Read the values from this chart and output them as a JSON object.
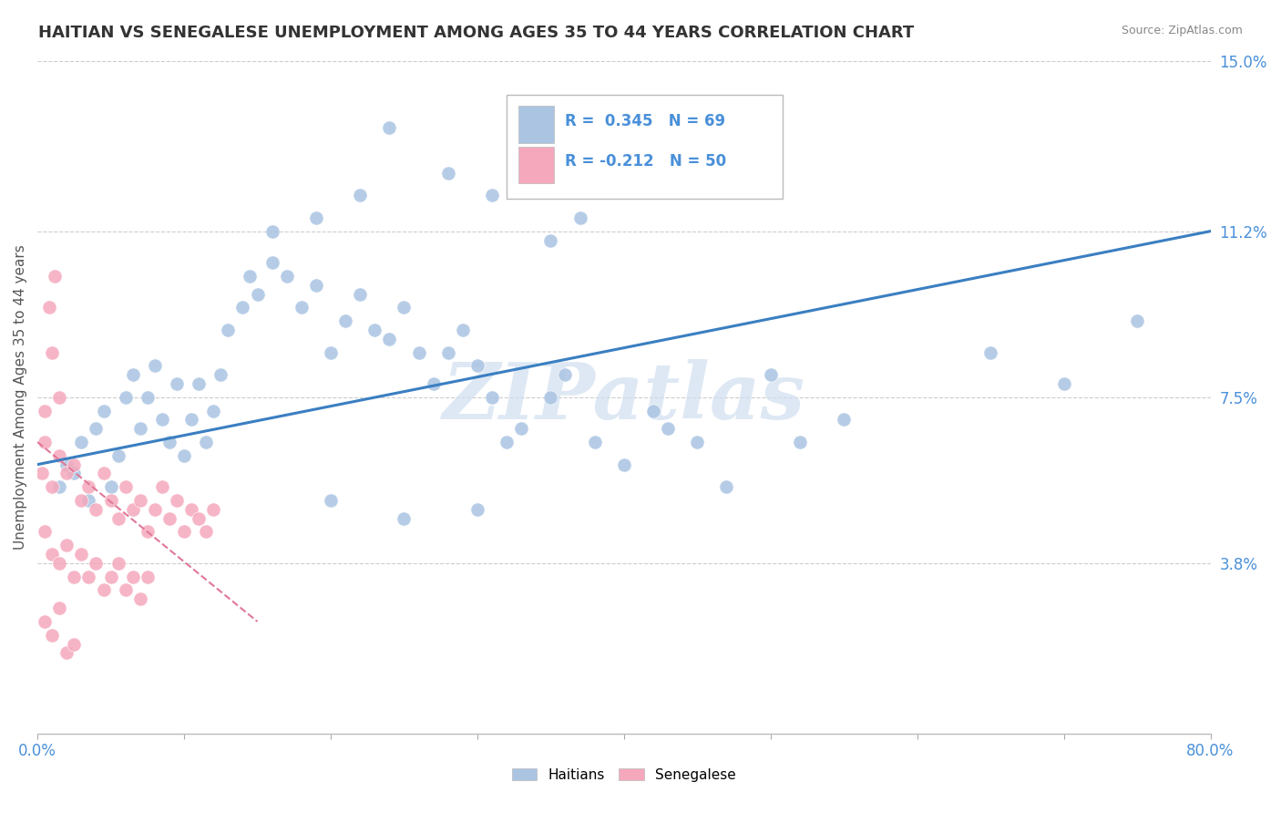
{
  "title": "HAITIAN VS SENEGALESE UNEMPLOYMENT AMONG AGES 35 TO 44 YEARS CORRELATION CHART",
  "source": "Source: ZipAtlas.com",
  "xlim": [
    0.0,
    80.0
  ],
  "ylim": [
    0.0,
    15.0
  ],
  "ytick_vals": [
    3.8,
    7.5,
    11.2,
    15.0
  ],
  "xtick_show": [
    0.0,
    80.0
  ],
  "xtick_minor": [
    10.0,
    20.0,
    30.0,
    40.0,
    50.0,
    60.0,
    70.0
  ],
  "haitian_color": "#aac4e2",
  "senegalese_color": "#f5a8bc",
  "haitian_line_color": "#3a7fc1",
  "senegalese_line_color": "#e07898",
  "watermark": "ZIPatlas",
  "watermark_color": "#d0dff0",
  "axis_label_color": "#4a90d9",
  "legend_label1": "Haitians",
  "legend_label2": "Senegalese",
  "ylabel": "Unemployment Among Ages 35 to 44 years",
  "haitian_R": 0.345,
  "haitian_N": 69,
  "senegalese_R": -0.212,
  "senegalese_N": 50,
  "haitian_line_x0": 0.0,
  "haitian_line_y0": 6.0,
  "haitian_line_x1": 80.0,
  "haitian_line_y1": 11.2,
  "senegalese_line_x0": 0.0,
  "senegalese_line_y0": 6.5,
  "senegalese_line_x1": 15.0,
  "senegalese_line_y1": 2.5,
  "haitian_points": [
    [
      1.5,
      5.5
    ],
    [
      2.0,
      6.0
    ],
    [
      2.5,
      5.8
    ],
    [
      3.0,
      6.5
    ],
    [
      3.5,
      5.2
    ],
    [
      4.0,
      6.8
    ],
    [
      4.5,
      7.2
    ],
    [
      5.0,
      5.5
    ],
    [
      5.5,
      6.2
    ],
    [
      6.0,
      7.5
    ],
    [
      6.5,
      8.0
    ],
    [
      7.0,
      6.8
    ],
    [
      7.5,
      7.5
    ],
    [
      8.0,
      8.2
    ],
    [
      8.5,
      7.0
    ],
    [
      9.0,
      6.5
    ],
    [
      9.5,
      7.8
    ],
    [
      10.0,
      6.2
    ],
    [
      10.5,
      7.0
    ],
    [
      11.0,
      7.8
    ],
    [
      11.5,
      6.5
    ],
    [
      12.0,
      7.2
    ],
    [
      12.5,
      8.0
    ],
    [
      13.0,
      9.0
    ],
    [
      14.0,
      9.5
    ],
    [
      14.5,
      10.2
    ],
    [
      15.0,
      9.8
    ],
    [
      16.0,
      10.5
    ],
    [
      17.0,
      10.2
    ],
    [
      18.0,
      9.5
    ],
    [
      19.0,
      10.0
    ],
    [
      20.0,
      8.5
    ],
    [
      21.0,
      9.2
    ],
    [
      22.0,
      9.8
    ],
    [
      23.0,
      9.0
    ],
    [
      24.0,
      8.8
    ],
    [
      25.0,
      9.5
    ],
    [
      26.0,
      8.5
    ],
    [
      27.0,
      7.8
    ],
    [
      28.0,
      8.5
    ],
    [
      29.0,
      9.0
    ],
    [
      30.0,
      8.2
    ],
    [
      31.0,
      7.5
    ],
    [
      32.0,
      6.5
    ],
    [
      33.0,
      6.8
    ],
    [
      35.0,
      7.5
    ],
    [
      36.0,
      8.0
    ],
    [
      38.0,
      6.5
    ],
    [
      40.0,
      6.0
    ],
    [
      42.0,
      7.2
    ],
    [
      43.0,
      6.8
    ],
    [
      45.0,
      6.5
    ],
    [
      47.0,
      5.5
    ],
    [
      50.0,
      8.0
    ],
    [
      52.0,
      6.5
    ],
    [
      55.0,
      7.0
    ],
    [
      24.0,
      13.5
    ],
    [
      28.0,
      12.5
    ],
    [
      31.0,
      12.0
    ],
    [
      35.0,
      11.0
    ],
    [
      37.0,
      11.5
    ],
    [
      22.0,
      12.0
    ],
    [
      19.0,
      11.5
    ],
    [
      16.0,
      11.2
    ],
    [
      65.0,
      8.5
    ],
    [
      70.0,
      7.8
    ],
    [
      75.0,
      9.2
    ],
    [
      20.0,
      5.2
    ],
    [
      25.0,
      4.8
    ],
    [
      30.0,
      5.0
    ]
  ],
  "senegalese_points": [
    [
      0.5,
      7.2
    ],
    [
      0.8,
      9.5
    ],
    [
      1.0,
      8.5
    ],
    [
      1.2,
      10.2
    ],
    [
      1.5,
      7.5
    ],
    [
      0.3,
      5.8
    ],
    [
      0.5,
      6.5
    ],
    [
      1.0,
      5.5
    ],
    [
      1.5,
      6.2
    ],
    [
      2.0,
      5.8
    ],
    [
      2.5,
      6.0
    ],
    [
      3.0,
      5.2
    ],
    [
      3.5,
      5.5
    ],
    [
      4.0,
      5.0
    ],
    [
      4.5,
      5.8
    ],
    [
      5.0,
      5.2
    ],
    [
      5.5,
      4.8
    ],
    [
      6.0,
      5.5
    ],
    [
      6.5,
      5.0
    ],
    [
      7.0,
      5.2
    ],
    [
      7.5,
      4.5
    ],
    [
      8.0,
      5.0
    ],
    [
      8.5,
      5.5
    ],
    [
      9.0,
      4.8
    ],
    [
      9.5,
      5.2
    ],
    [
      10.0,
      4.5
    ],
    [
      10.5,
      5.0
    ],
    [
      11.0,
      4.8
    ],
    [
      11.5,
      4.5
    ],
    [
      12.0,
      5.0
    ],
    [
      0.5,
      4.5
    ],
    [
      1.0,
      4.0
    ],
    [
      1.5,
      3.8
    ],
    [
      2.0,
      4.2
    ],
    [
      2.5,
      3.5
    ],
    [
      3.0,
      4.0
    ],
    [
      3.5,
      3.5
    ],
    [
      4.0,
      3.8
    ],
    [
      4.5,
      3.2
    ],
    [
      5.0,
      3.5
    ],
    [
      5.5,
      3.8
    ],
    [
      6.0,
      3.2
    ],
    [
      6.5,
      3.5
    ],
    [
      7.0,
      3.0
    ],
    [
      7.5,
      3.5
    ],
    [
      0.5,
      2.5
    ],
    [
      1.0,
      2.2
    ],
    [
      1.5,
      2.8
    ],
    [
      2.0,
      1.8
    ],
    [
      2.5,
      2.0
    ]
  ]
}
